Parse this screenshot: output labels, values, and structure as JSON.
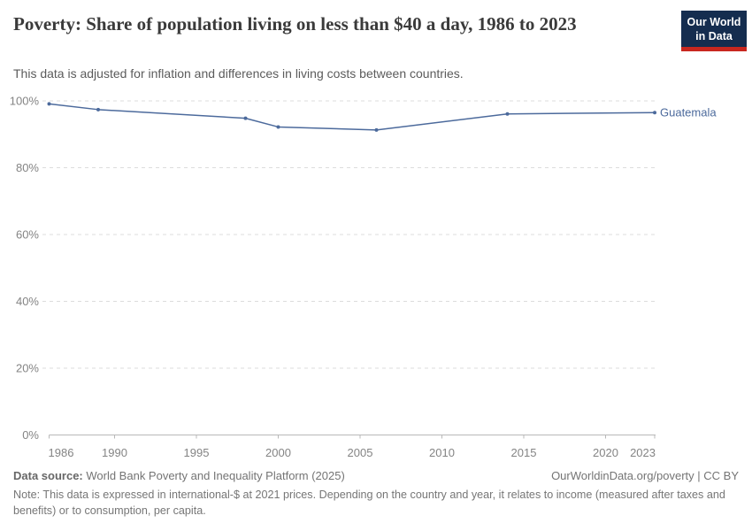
{
  "header": {
    "title": "Poverty: Share of population living on less than $40 a day, 1986 to 2023",
    "subtitle": "This data is adjusted for inflation and differences in living costs between countries."
  },
  "logo": {
    "line1": "Our World",
    "line2": "in Data"
  },
  "chart_data": {
    "type": "line",
    "title": "Poverty: Share of population living on less than $40 a day, 1986 to 2023",
    "xlabel": "",
    "ylabel": "",
    "xlim": [
      1986,
      2023
    ],
    "ylim": [
      0,
      100
    ],
    "x_ticks": [
      1986,
      1990,
      1995,
      2000,
      2005,
      2010,
      2015,
      2020,
      2023
    ],
    "y_ticks": [
      0,
      20,
      40,
      60,
      80,
      100
    ],
    "y_tick_suffix": "%",
    "grid": "horizontal-dashed",
    "legend_position": "end-of-line-label",
    "series": [
      {
        "name": "Guatemala",
        "color": "#4c6a9c",
        "points": [
          {
            "year": 1986,
            "value": 99.1
          },
          {
            "year": 1989,
            "value": 97.4
          },
          {
            "year": 1998,
            "value": 94.8
          },
          {
            "year": 2000,
            "value": 92.2
          },
          {
            "year": 2006,
            "value": 91.3
          },
          {
            "year": 2014,
            "value": 96.1
          },
          {
            "year": 2023,
            "value": 96.5
          }
        ]
      }
    ]
  },
  "footer": {
    "source_label": "Data source:",
    "source_text": " World Bank Poverty and Inequality Platform (2025)",
    "credit": "OurWorldinData.org/poverty | CC BY",
    "note_label": "Note:",
    "note_text": " This data is expressed in international-$ at 2021 prices. Depending on the country and year, it relates to income (measured after taxes and benefits) or to consumption, per capita."
  },
  "colors": {
    "line": "#4c6a9c",
    "grid": "#dcdcdc",
    "axis": "#b8b8b8",
    "tick_label": "#848484",
    "logo_bg": "#152d4f",
    "logo_bar": "#c8271f"
  }
}
